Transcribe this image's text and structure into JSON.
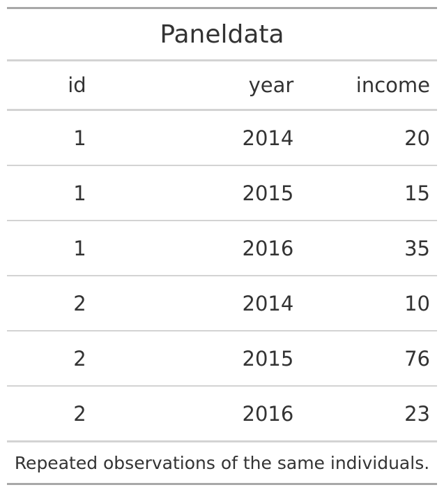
{
  "table": {
    "title": "Paneldata",
    "columns": [
      "id",
      "year",
      "income"
    ],
    "rows": [
      [
        "1",
        "2014",
        "20"
      ],
      [
        "1",
        "2015",
        "15"
      ],
      [
        "1",
        "2016",
        "35"
      ],
      [
        "2",
        "2014",
        "10"
      ],
      [
        "2",
        "2015",
        "76"
      ],
      [
        "2",
        "2016",
        "23"
      ]
    ],
    "footnote": "Repeated observations of the same individuals."
  },
  "colors": {
    "text": "#333333",
    "rule_dark": "#a8a8a8",
    "rule_light": "#d3d3d3"
  }
}
